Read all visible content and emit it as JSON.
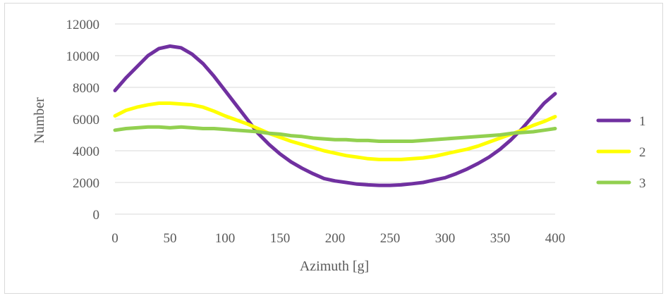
{
  "chart_data": {
    "type": "line",
    "title": "",
    "xlabel": "Azimuth [g]",
    "ylabel": "Number",
    "xlim": [
      0,
      400
    ],
    "ylim": [
      0,
      12000
    ],
    "x_ticks": [
      0,
      50,
      100,
      150,
      200,
      250,
      300,
      350,
      400
    ],
    "y_ticks": [
      0,
      2000,
      4000,
      6000,
      8000,
      10000,
      12000
    ],
    "grid": "horizontal",
    "legend_position": "right",
    "x": [
      0,
      10,
      20,
      30,
      40,
      50,
      60,
      70,
      80,
      90,
      100,
      110,
      120,
      130,
      140,
      150,
      160,
      170,
      180,
      190,
      200,
      210,
      220,
      230,
      240,
      250,
      260,
      270,
      280,
      290,
      300,
      310,
      320,
      330,
      340,
      350,
      360,
      370,
      380,
      390,
      400
    ],
    "series": [
      {
        "name": "1",
        "color": "#7030a0",
        "values": [
          7800,
          8600,
          9300,
          10000,
          10450,
          10600,
          10500,
          10100,
          9500,
          8700,
          7800,
          6900,
          6000,
          5100,
          4400,
          3800,
          3300,
          2900,
          2550,
          2250,
          2100,
          2000,
          1900,
          1850,
          1820,
          1820,
          1850,
          1920,
          2000,
          2150,
          2300,
          2550,
          2850,
          3200,
          3600,
          4100,
          4700,
          5400,
          6200,
          7000,
          7600
        ]
      },
      {
        "name": "2",
        "color": "#ffff00",
        "values": [
          6200,
          6550,
          6750,
          6900,
          7000,
          7000,
          6950,
          6900,
          6750,
          6500,
          6200,
          5950,
          5700,
          5400,
          5100,
          4850,
          4600,
          4400,
          4200,
          4000,
          3850,
          3700,
          3600,
          3500,
          3450,
          3450,
          3450,
          3500,
          3550,
          3650,
          3800,
          3950,
          4100,
          4300,
          4550,
          4800,
          5050,
          5300,
          5600,
          5850,
          6150
        ]
      },
      {
        "name": "3",
        "color": "#92d050",
        "values": [
          5300,
          5400,
          5450,
          5500,
          5500,
          5450,
          5500,
          5450,
          5400,
          5400,
          5350,
          5300,
          5250,
          5200,
          5100,
          5050,
          4950,
          4900,
          4800,
          4750,
          4700,
          4700,
          4650,
          4650,
          4600,
          4600,
          4600,
          4600,
          4650,
          4700,
          4750,
          4800,
          4850,
          4900,
          4950,
          5000,
          5100,
          5150,
          5200,
          5300,
          5400
        ]
      }
    ]
  }
}
